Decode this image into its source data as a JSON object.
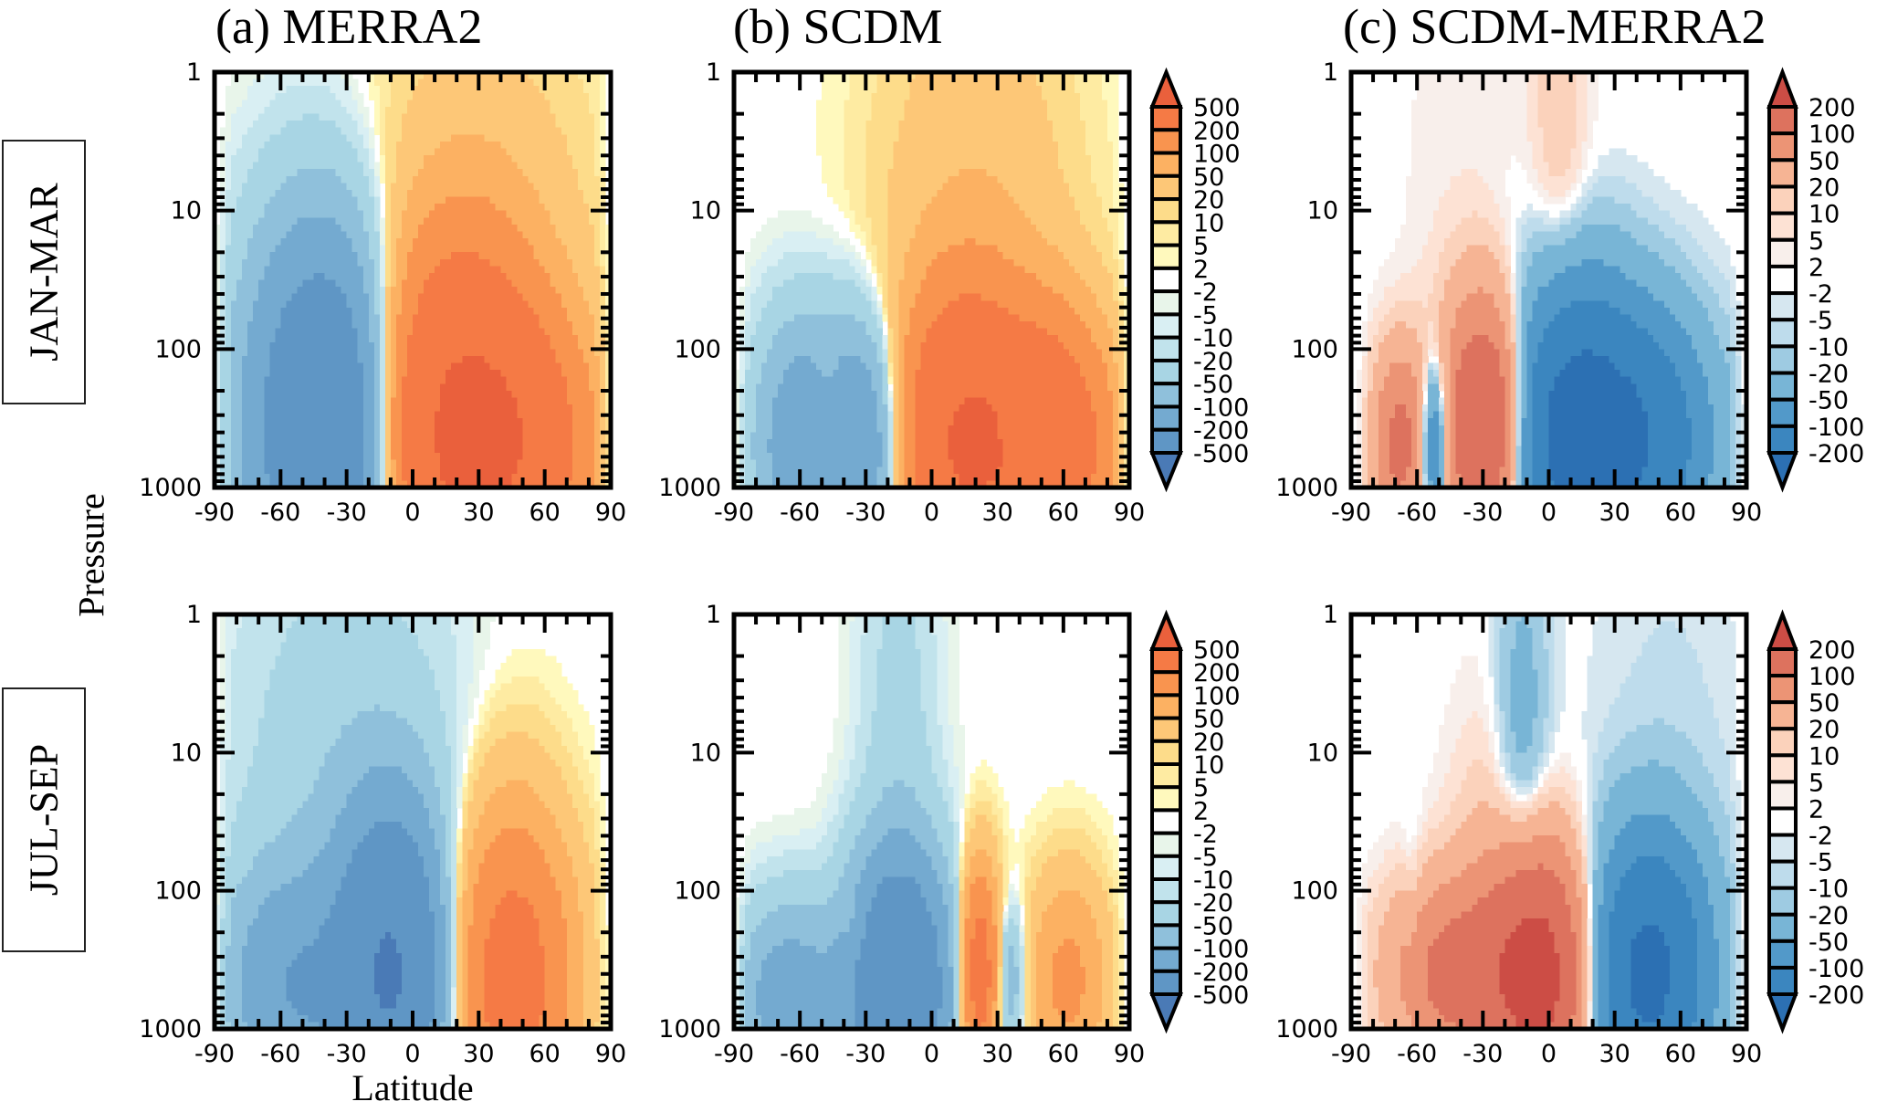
{
  "figure": {
    "row_labels": [
      "JAN-MAR",
      "JUL-SEP"
    ],
    "column_titles": [
      "(a) MERRA2",
      "(b) SCDM",
      "(c) SCDM-MERRA2"
    ],
    "ylabel": "Pressure",
    "xlabel": "Latitude"
  },
  "chart_data": [
    {
      "type": "heatmap",
      "id": "a-jan-mar",
      "title": "(a) MERRA2",
      "row": "JAN-MAR",
      "colorbar": "full",
      "xlabel": "Latitude",
      "ylabel": "Pressure",
      "xlim": [
        -90,
        90
      ],
      "ylim": [
        1000,
        1
      ],
      "yscale": "log",
      "xticks": [
        "-90",
        "-60",
        "-30",
        "0",
        "30",
        "60",
        "90"
      ],
      "yticks": [
        "1",
        "10",
        "100",
        "1000"
      ],
      "features": [
        {
          "lat": -40,
          "p": 400,
          "amp": -420,
          "wlat": 22,
          "wlogp": 0.9
        },
        {
          "lat": -45,
          "p": 60,
          "amp": -25,
          "wlat": 25,
          "wlogp": 0.9
        },
        {
          "lat": 20,
          "p": 400,
          "amp": 500,
          "wlat": 24,
          "wlogp": 0.85
        },
        {
          "lat": 50,
          "p": 500,
          "amp": 250,
          "wlat": 22,
          "wlogp": 0.6
        },
        {
          "lat": 30,
          "p": 20,
          "amp": 40,
          "wlat": 35,
          "wlogp": 1.2
        }
      ]
    },
    {
      "type": "heatmap",
      "id": "b-jan-mar",
      "title": "(b) SCDM",
      "row": "JAN-MAR",
      "colorbar": "full",
      "xlabel": "Latitude",
      "ylabel": "Pressure",
      "xlim": [
        -90,
        90
      ],
      "ylim": [
        1000,
        1
      ],
      "yscale": "log",
      "xticks": [
        "-90",
        "-60",
        "-30",
        "0",
        "30",
        "60",
        "90"
      ],
      "yticks": [
        "1",
        "10",
        "100",
        "1000"
      ],
      "features": [
        {
          "lat": -60,
          "p": 500,
          "amp": -160,
          "wlat": 14,
          "wlogp": 0.6
        },
        {
          "lat": -30,
          "p": 500,
          "amp": -200,
          "wlat": 14,
          "wlogp": 0.6
        },
        {
          "lat": -48,
          "p": 200,
          "amp": 40,
          "wlat": 5,
          "wlogp": 0.25
        },
        {
          "lat": 15,
          "p": 500,
          "amp": 500,
          "wlat": 20,
          "wlogp": 0.7
        },
        {
          "lat": 55,
          "p": 500,
          "amp": 350,
          "wlat": 18,
          "wlogp": 0.6
        },
        {
          "lat": 20,
          "p": 15,
          "amp": 45,
          "wlat": 30,
          "wlogp": 1.3
        },
        {
          "lat": 38,
          "p": 350,
          "amp": -120,
          "wlat": 4,
          "wlogp": 0.25
        }
      ]
    },
    {
      "type": "heatmap",
      "id": "c-jan-mar",
      "title": "(c) SCDM-MERRA2",
      "row": "JAN-MAR",
      "colorbar": "diff",
      "xlabel": "Latitude",
      "ylabel": "Pressure",
      "xlim": [
        -90,
        90
      ],
      "ylim": [
        1000,
        1
      ],
      "yscale": "log",
      "xticks": [
        "-90",
        "-60",
        "-30",
        "0",
        "30",
        "60",
        "90"
      ],
      "yticks": [
        "1",
        "10",
        "100",
        "1000"
      ],
      "features": [
        {
          "lat": -28,
          "p": 350,
          "amp": 220,
          "wlat": 13,
          "wlogp": 0.6
        },
        {
          "lat": -68,
          "p": 500,
          "amp": 120,
          "wlat": 8,
          "wlogp": 0.45
        },
        {
          "lat": -52,
          "p": 500,
          "amp": -130,
          "wlat": 4,
          "wlogp": 0.4
        },
        {
          "lat": 10,
          "p": 400,
          "amp": -260,
          "wlat": 20,
          "wlogp": 0.7
        },
        {
          "lat": 45,
          "p": 450,
          "amp": -150,
          "wlat": 20,
          "wlogp": 0.6
        },
        {
          "lat": 5,
          "p": 8,
          "amp": 18,
          "wlat": 9,
          "wlogp": 1.6
        },
        {
          "lat": -40,
          "p": 10,
          "amp": 4,
          "wlat": 20,
          "wlogp": 1.6
        },
        {
          "lat": 25,
          "p": 550,
          "amp": 60,
          "wlat": 3,
          "wlogp": 0.2
        }
      ]
    },
    {
      "type": "heatmap",
      "id": "a-jul-sep",
      "title": "(a) MERRA2",
      "row": "JUL-SEP",
      "colorbar": "full",
      "xlabel": "Latitude",
      "ylabel": "Pressure",
      "xlim": [
        -90,
        90
      ],
      "ylim": [
        1000,
        1
      ],
      "yscale": "log",
      "xticks": [
        "-90",
        "-60",
        "-30",
        "0",
        "30",
        "60",
        "90"
      ],
      "yticks": [
        "1",
        "10",
        "100",
        "1000"
      ],
      "features": [
        {
          "lat": -10,
          "p": 400,
          "amp": -500,
          "wlat": 16,
          "wlogp": 0.75
        },
        {
          "lat": -55,
          "p": 500,
          "amp": -180,
          "wlat": 20,
          "wlogp": 0.55
        },
        {
          "lat": -30,
          "p": 20,
          "amp": -40,
          "wlat": 35,
          "wlogp": 1.3
        },
        {
          "lat": 45,
          "p": 450,
          "amp": 280,
          "wlat": 18,
          "wlogp": 0.75
        },
        {
          "lat": 45,
          "p": 40,
          "amp": 12,
          "wlat": 15,
          "wlogp": 0.8
        }
      ]
    },
    {
      "type": "heatmap",
      "id": "b-jul-sep",
      "title": "(b) SCDM",
      "row": "JUL-SEP",
      "colorbar": "full",
      "xlabel": "Latitude",
      "ylabel": "Pressure",
      "xlim": [
        -90,
        90
      ],
      "ylim": [
        1000,
        1
      ],
      "yscale": "log",
      "xticks": [
        "-90",
        "-60",
        "-30",
        "0",
        "30",
        "60",
        "90"
      ],
      "yticks": [
        "1",
        "10",
        "100",
        "1000"
      ],
      "features": [
        {
          "lat": -15,
          "p": 500,
          "amp": -450,
          "wlat": 15,
          "wlogp": 0.6
        },
        {
          "lat": -65,
          "p": 600,
          "amp": -150,
          "wlat": 16,
          "wlogp": 0.45
        },
        {
          "lat": -15,
          "p": 10,
          "amp": -30,
          "wlat": 12,
          "wlogp": 1.4
        },
        {
          "lat": -35,
          "p": 200,
          "amp": 40,
          "wlat": 4,
          "wlogp": 0.2
        },
        {
          "lat": 22,
          "p": 400,
          "amp": 300,
          "wlat": 6,
          "wlogp": 0.5
        },
        {
          "lat": 35,
          "p": 450,
          "amp": -100,
          "wlat": 5,
          "wlogp": 0.35
        },
        {
          "lat": 62,
          "p": 450,
          "amp": 120,
          "wlat": 12,
          "wlogp": 0.5
        }
      ]
    },
    {
      "type": "heatmap",
      "id": "c-jul-sep",
      "title": "(c) SCDM-MERRA2",
      "row": "JUL-SEP",
      "colorbar": "diff",
      "xlabel": "Latitude",
      "ylabel": "Pressure",
      "xlim": [
        -90,
        90
      ],
      "ylim": [
        1000,
        1
      ],
      "yscale": "log",
      "xticks": [
        "-90",
        "-60",
        "-30",
        "0",
        "30",
        "60",
        "90"
      ],
      "yticks": [
        "1",
        "10",
        "100",
        "1000"
      ],
      "features": [
        {
          "lat": -5,
          "p": 400,
          "amp": 260,
          "wlat": 16,
          "wlogp": 0.6
        },
        {
          "lat": -45,
          "p": 400,
          "amp": 120,
          "wlat": 18,
          "wlogp": 0.45
        },
        {
          "lat": -30,
          "p": 50,
          "amp": 12,
          "wlat": 12,
          "wlogp": 0.8
        },
        {
          "lat": 45,
          "p": 400,
          "amp": -230,
          "wlat": 18,
          "wlogp": 0.65
        },
        {
          "lat": -12,
          "p": 8,
          "amp": -30,
          "wlat": 8,
          "wlogp": 1.0
        },
        {
          "lat": 55,
          "p": 10,
          "amp": -6,
          "wlat": 25,
          "wlogp": 1.5
        },
        {
          "lat": -62,
          "p": 200,
          "amp": -15,
          "wlat": 3,
          "wlogp": 0.5
        }
      ]
    }
  ],
  "colorbars": {
    "full": {
      "levels": [
        "500",
        "200",
        "100",
        "50",
        "20",
        "10",
        "5",
        "2",
        "-2",
        "-5",
        "-10",
        "-20",
        "-50",
        "-100",
        "-200",
        "-500"
      ],
      "bounds": [
        -500,
        -200,
        -100,
        -50,
        -20,
        -10,
        -5,
        -2,
        2,
        5,
        10,
        20,
        50,
        100,
        200,
        500
      ],
      "colors": [
        "#4a7ab6",
        "#5f96c5",
        "#74aad0",
        "#8fc0db",
        "#a8d5e4",
        "#c1e3ec",
        "#d9eff3",
        "#e8f5ea",
        "#ffffff",
        "#fff9bd",
        "#feeba2",
        "#fddc8a",
        "#fdc777",
        "#fcb162",
        "#f9944f",
        "#f57a45",
        "#ea603c"
      ]
    },
    "diff": {
      "levels": [
        "200",
        "100",
        "50",
        "20",
        "10",
        "5",
        "2",
        "-2",
        "-5",
        "-10",
        "-20",
        "-50",
        "-100",
        "-200"
      ],
      "bounds": [
        -200,
        -100,
        -50,
        -20,
        -10,
        -5,
        -2,
        2,
        5,
        10,
        20,
        50,
        100,
        200
      ],
      "colors": [
        "#2c70b3",
        "#3b86bf",
        "#5299c9",
        "#78b5d6",
        "#9ecbe2",
        "#bedcec",
        "#d6e7f0",
        "#ffffff",
        "#f8efeb",
        "#fde2d4",
        "#fbd2bb",
        "#f6b494",
        "#ec9475",
        "#dd725e",
        "#cc4d45"
      ]
    }
  }
}
